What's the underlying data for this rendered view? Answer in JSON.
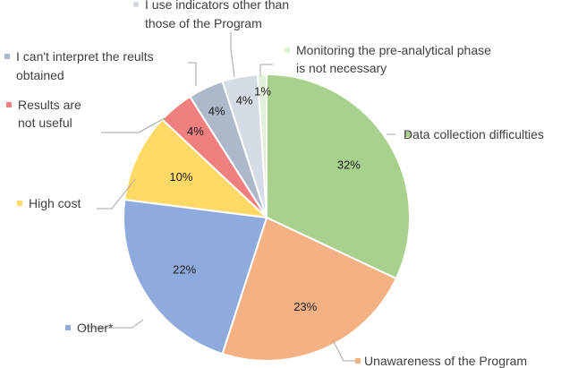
{
  "chart_data": {
    "type": "pie",
    "title": "",
    "slices": [
      {
        "label": "Data collection difficulties",
        "value": 32,
        "display": "32%",
        "color": "#a9d18e"
      },
      {
        "label": "Unawareness of the Program",
        "value": 23,
        "display": "23%",
        "color": "#f4b183"
      },
      {
        "label": "Other*",
        "value": 22,
        "display": "22%",
        "color": "#8faadc"
      },
      {
        "label": "High cost",
        "value": 10,
        "display": "10%",
        "color": "#ffd966"
      },
      {
        "label": "Results are not useful",
        "value": 4,
        "display": "4%",
        "color": "#f08080"
      },
      {
        "label": "I can't interpret the reults obtained",
        "value": 4,
        "display": "4%",
        "color": "#adb9ca"
      },
      {
        "label": "I use indicators other than those of the Program",
        "value": 4,
        "display": "4%",
        "color": "#d6dce5"
      },
      {
        "label": "Monitoring the pre-analytical phase is not necessary",
        "value": 1,
        "display": "1%",
        "color": "#e2f0d9"
      }
    ],
    "legend": "labels-outside-with-leader-lines"
  }
}
